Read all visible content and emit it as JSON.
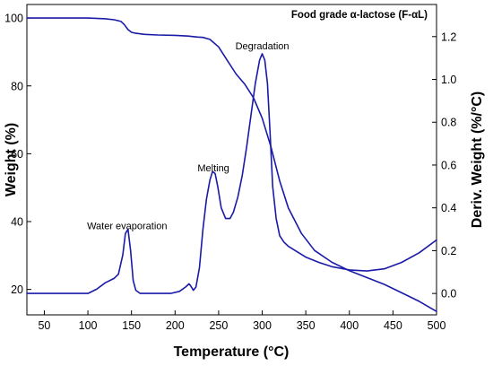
{
  "chart_data": {
    "type": "line",
    "title": "Food grade α-lactose (F-αL)",
    "xlabel": "Temperature (°C)",
    "ylabel_left": "Weight (%)",
    "ylabel_right": "Deriv. Weight (%/°C)",
    "xlim": [
      30,
      500
    ],
    "ylim_left": [
      12.5,
      104
    ],
    "ylim_right": [
      -0.1,
      1.35
    ],
    "x_ticks": [
      50,
      100,
      150,
      200,
      250,
      300,
      350,
      400,
      450,
      500
    ],
    "y_left_ticks": [
      20,
      40,
      60,
      80,
      100
    ],
    "y_right_ticks": [
      0.0,
      0.2,
      0.4,
      0.6,
      0.8,
      1.0,
      1.2
    ],
    "y_right_tick_labels": [
      "0.0",
      "0.2",
      "0.4",
      "0.6",
      "0.8",
      "1.0",
      "1.2"
    ],
    "grid": false,
    "line_color": "#1a1aa8",
    "annotations": [
      {
        "text": "Water evaporation",
        "x": 145,
        "y_deriv": 0.3
      },
      {
        "text": "Melting",
        "x": 244,
        "y_deriv": 0.57
      },
      {
        "text": "Degradation",
        "x": 300,
        "y_deriv": 1.14
      }
    ],
    "series": [
      {
        "axis": "left",
        "x": [
          30,
          60,
          100,
          120,
          130,
          138,
          142,
          146,
          150,
          155,
          165,
          180,
          200,
          215,
          222,
          226,
          232,
          240,
          250,
          260,
          270,
          280,
          290,
          300,
          310,
          320,
          330,
          345,
          360,
          380,
          400,
          420,
          440,
          460,
          480,
          500
        ],
        "y": [
          100,
          100,
          100,
          99.8,
          99.5,
          99,
          98,
          96.6,
          95.8,
          95.5,
          95.2,
          95,
          94.9,
          94.7,
          94.5,
          94.4,
          94.3,
          93.7,
          91.5,
          87.5,
          83.5,
          80.5,
          76.5,
          70.5,
          62,
          52,
          44,
          36.5,
          31.5,
          28,
          25.5,
          23.5,
          21.5,
          19,
          16.5,
          13.5
        ]
      },
      {
        "axis": "right",
        "x": [
          30,
          60,
          100,
          110,
          120,
          130,
          135,
          140,
          143,
          146,
          149,
          152,
          155,
          160,
          170,
          180,
          195,
          205,
          212,
          216,
          218,
          221,
          224,
          228,
          232,
          236,
          240,
          243,
          246,
          249,
          253,
          258,
          263,
          267,
          272,
          277,
          282,
          287,
          292,
          297,
          300,
          303,
          306,
          309,
          312,
          316,
          320,
          325,
          330,
          338,
          350,
          365,
          380,
          400,
          420,
          440,
          460,
          480,
          500
        ],
        "y": [
          0,
          0,
          0,
          0.02,
          0.05,
          0.07,
          0.09,
          0.18,
          0.28,
          0.3,
          0.2,
          0.06,
          0.015,
          0,
          0,
          0,
          0,
          0.01,
          0.03,
          0.045,
          0.035,
          0.015,
          0.03,
          0.12,
          0.3,
          0.44,
          0.53,
          0.57,
          0.56,
          0.5,
          0.4,
          0.35,
          0.35,
          0.38,
          0.45,
          0.55,
          0.68,
          0.83,
          0.98,
          1.09,
          1.12,
          1.09,
          0.98,
          0.75,
          0.5,
          0.35,
          0.27,
          0.24,
          0.22,
          0.2,
          0.17,
          0.145,
          0.125,
          0.11,
          0.105,
          0.115,
          0.145,
          0.19,
          0.25
        ]
      }
    ]
  }
}
